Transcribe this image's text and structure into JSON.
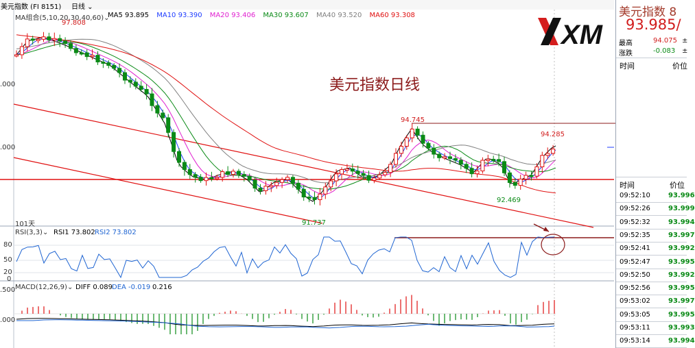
{
  "header": {
    "symbol_title": "美元指数 (FI 8151)",
    "period_dropdown": "日线",
    "ma_group_label": "MA组合(5,10,20,30,40,60)",
    "ma_values": [
      {
        "label": "MA5",
        "value": "93.895",
        "color": "#000000"
      },
      {
        "label": "MA10",
        "value": "93.390",
        "color": "#1e3cff"
      },
      {
        "label": "MA20",
        "value": "93.406",
        "color": "#e020d0"
      },
      {
        "label": "MA30",
        "value": "93.607",
        "color": "#0a8a16"
      },
      {
        "label": "MA40",
        "value": "93.520",
        "color": "#808080"
      },
      {
        "label": "MA60",
        "value": "93.308",
        "color": "#e01010"
      }
    ]
  },
  "main_chart": {
    "watermark_title": "美元指数日线",
    "annotations": {
      "high": "97.808",
      "low": "91.737",
      "peak": "94.745",
      "recent_high": "94.285",
      "recent_low": "92.469"
    },
    "period_count": "101天",
    "axis_labels": [
      ".000",
      ".000"
    ]
  },
  "rsi": {
    "label": "RSI(3,3)",
    "rsi1": "RSI1 73.802",
    "rsi2": "RSI2 73.802",
    "ticks": [
      "80",
      "50",
      "20",
      "0"
    ]
  },
  "macd": {
    "label": "MACD(12,26,9)",
    "diff": "DIFF 0.089",
    "dea": "DEA -0.019",
    "macd": "0.216",
    "ticks": [
      ".500",
      ".000"
    ]
  },
  "logo": {
    "text": "XM"
  },
  "quote_panel": {
    "title": "美元指数 8",
    "price": "93.985/",
    "rows": [
      {
        "label": "最高",
        "value": "94.075",
        "extra": "±"
      },
      {
        "label": "涨跌",
        "value": "-0.083",
        "extra": "±"
      }
    ],
    "header1": {
      "time": "时间",
      "price": "价位"
    },
    "header2": {
      "time": "时间",
      "price": "价位"
    },
    "ticks": [
      {
        "time": "09:52:10",
        "price": "93.996"
      },
      {
        "time": "09:52:26",
        "price": "93.999"
      },
      {
        "time": "09:52:32",
        "price": "93.994"
      },
      {
        "time": "09:52:35",
        "price": "93.997"
      },
      {
        "time": "09:52:41",
        "price": "93.992"
      },
      {
        "time": "09:52:47",
        "price": "93.995"
      },
      {
        "time": "09:52:50",
        "price": "93.992"
      },
      {
        "time": "09:52:56",
        "price": "93.995"
      },
      {
        "time": "09:53:02",
        "price": "93.997"
      },
      {
        "time": "09:53:05",
        "price": "93.995"
      },
      {
        "time": "09:53:11",
        "price": "93.993"
      },
      {
        "time": "09:53:14",
        "price": "93.994"
      }
    ]
  },
  "colors": {
    "up": "#e01010",
    "down": "#0a8a16",
    "rsi": "#1e64d2",
    "grid": "#dfe3ea"
  }
}
